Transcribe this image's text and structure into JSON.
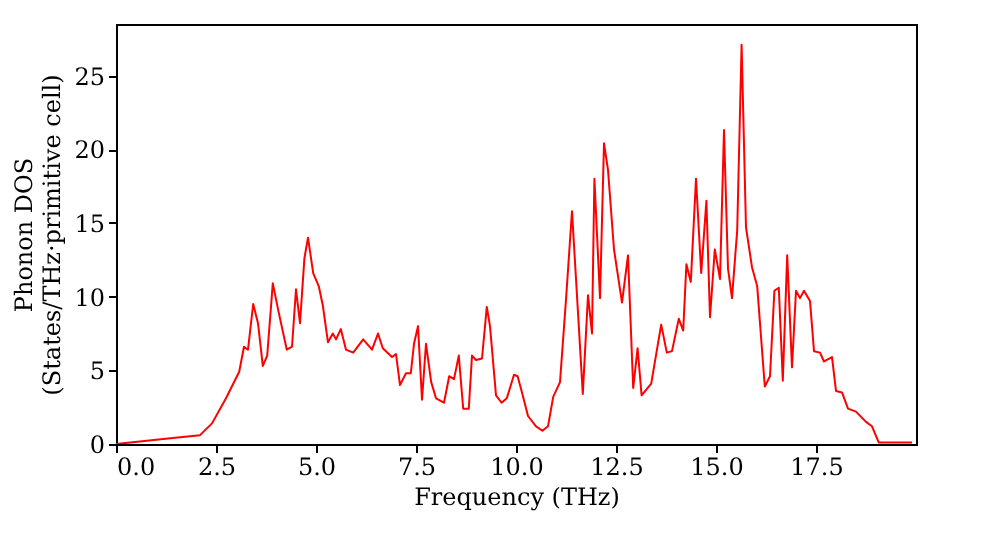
{
  "chart_data": {
    "type": "line",
    "xlabel": "Frequency (THz)",
    "ylabel": "Phonon DOS\n(States/THz·primitive cell)",
    "xlim": [
      0,
      20
    ],
    "ylim": [
      0,
      28.5
    ],
    "xticks": [
      {
        "value": 0,
        "label": "0.0"
      },
      {
        "value": 2.5,
        "label": "2.5"
      },
      {
        "value": 5,
        "label": "5.0"
      },
      {
        "value": 7.5,
        "label": "7.5"
      },
      {
        "value": 10,
        "label": "10.0"
      },
      {
        "value": 12.5,
        "label": "12.5"
      },
      {
        "value": 15,
        "label": "15.0"
      },
      {
        "value": 17.5,
        "label": "17.5"
      }
    ],
    "yticks": [
      0,
      5,
      10,
      15,
      20,
      25
    ],
    "grid": false,
    "marker": "none",
    "line_style": "solid",
    "series": [
      {
        "color": "#ff0000",
        "x": [
          0,
          1.42,
          2.1,
          2.4,
          2.75,
          3.08,
          3.2,
          3.3,
          3.43,
          3.55,
          3.67,
          3.78,
          3.92,
          4.07,
          4.27,
          4.4,
          4.5,
          4.6,
          4.71,
          4.8,
          4.93,
          5.07,
          5.17,
          5.3,
          5.42,
          5.5,
          5.62,
          5.75,
          5.93,
          6.18,
          6.4,
          6.55,
          6.67,
          6.9,
          7.0,
          7.1,
          7.25,
          7.37,
          7.45,
          7.55,
          7.65,
          7.75,
          7.88,
          8.0,
          8.2,
          8.33,
          8.45,
          8.57,
          8.68,
          8.82,
          8.9,
          9.0,
          9.15,
          9.27,
          9.35,
          9.5,
          9.64,
          9.77,
          9.95,
          10.04,
          10.15,
          10.3,
          10.5,
          10.66,
          10.8,
          10.93,
          11.1,
          11.25,
          11.4,
          11.67,
          11.8,
          11.9,
          11.96,
          12.1,
          12.2,
          12.3,
          12.45,
          12.65,
          12.8,
          12.93,
          13.04,
          13.14,
          13.38,
          13.63,
          13.77,
          13.9,
          14.07,
          14.18,
          14.26,
          14.37,
          14.5,
          14.63,
          14.76,
          14.85,
          14.97,
          15.1,
          15.2,
          15.3,
          15.4,
          15.53,
          15.64,
          15.75,
          15.9,
          16.03,
          16.22,
          16.35,
          16.46,
          16.57,
          16.67,
          16.78,
          16.9,
          17.0,
          17.1,
          17.2,
          17.35,
          17.45,
          17.6,
          17.7,
          17.9,
          18.0,
          18.15,
          18.3,
          18.5,
          18.75,
          18.9,
          19.07,
          19.9
        ],
        "values": [
          0,
          0.4,
          0.6,
          1.4,
          3.1,
          4.9,
          6.6,
          6.4,
          9.5,
          8.2,
          5.3,
          6.0,
          10.9,
          8.9,
          6.4,
          6.6,
          10.5,
          8.2,
          12.6,
          14.0,
          11.6,
          10.7,
          9.4,
          6.9,
          7.5,
          7.1,
          7.8,
          6.4,
          6.2,
          7.1,
          6.4,
          7.5,
          6.5,
          5.9,
          6.1,
          4.0,
          4.8,
          4.8,
          6.8,
          8.0,
          3.0,
          6.8,
          4.2,
          3.1,
          2.8,
          4.6,
          4.4,
          6.0,
          2.4,
          2.4,
          6.0,
          5.7,
          5.8,
          9.3,
          8.0,
          3.3,
          2.8,
          3.1,
          4.7,
          4.6,
          3.5,
          1.9,
          1.2,
          0.9,
          1.2,
          3.2,
          4.2,
          9.8,
          15.8,
          3.4,
          10.1,
          7.5,
          18.0,
          9.9,
          20.4,
          18.6,
          13.2,
          9.6,
          12.8,
          3.8,
          6.5,
          3.3,
          4.1,
          8.1,
          6.2,
          6.3,
          8.5,
          7.7,
          12.2,
          11.0,
          18.0,
          11.6,
          16.5,
          8.6,
          13.2,
          11.2,
          21.3,
          11.9,
          9.9,
          14.5,
          27.1,
          14.7,
          12.0,
          10.7,
          3.9,
          4.6,
          10.4,
          10.6,
          4.3,
          12.8,
          5.2,
          10.4,
          9.9,
          10.4,
          9.7,
          6.3,
          6.2,
          5.6,
          5.9,
          3.6,
          3.5,
          2.4,
          2.2,
          1.5,
          1.2,
          0.1,
          0.1
        ]
      }
    ]
  }
}
